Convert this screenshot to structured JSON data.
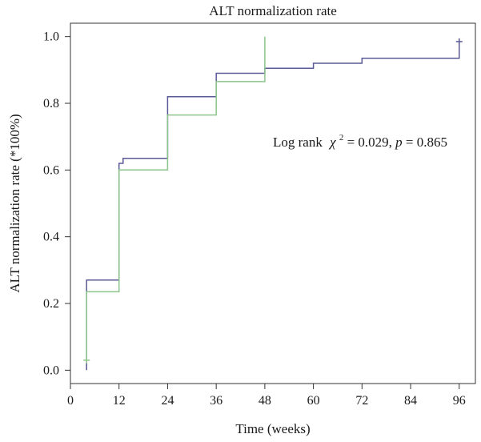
{
  "chart_data": {
    "type": "line",
    "subtype": "kaplan-meier-step",
    "title": "ALT normalization rate",
    "xlabel": "Time (weeks)",
    "ylabel": "ALT normalization rate (*100%)",
    "xlim": [
      0,
      100
    ],
    "ylim": [
      -0.04,
      1.04
    ],
    "x_ticks": [
      0,
      12,
      24,
      36,
      48,
      60,
      72,
      84,
      96
    ],
    "y_ticks": [
      0.0,
      0.2,
      0.4,
      0.6,
      0.8,
      1.0
    ],
    "y_tick_labels": [
      "0.0",
      "0.2",
      "0.4",
      "0.6",
      "0.8",
      "1.0"
    ],
    "grid": false,
    "legend": "none",
    "series": [
      {
        "color": "#5a5a96",
        "steps": [
          {
            "x": 4,
            "y": 0.0
          },
          {
            "x": 4,
            "y": 0.27
          },
          {
            "x": 12,
            "y": 0.27
          },
          {
            "x": 12,
            "y": 0.62
          },
          {
            "x": 13,
            "y": 0.62
          },
          {
            "x": 13,
            "y": 0.635
          },
          {
            "x": 24,
            "y": 0.635
          },
          {
            "x": 24,
            "y": 0.82
          },
          {
            "x": 36,
            "y": 0.82
          },
          {
            "x": 36,
            "y": 0.89
          },
          {
            "x": 48,
            "y": 0.89
          },
          {
            "x": 48,
            "y": 0.905
          },
          {
            "x": 60,
            "y": 0.905
          },
          {
            "x": 60,
            "y": 0.92
          },
          {
            "x": 72,
            "y": 0.92
          },
          {
            "x": 72,
            "y": 0.935
          },
          {
            "x": 96,
            "y": 0.935
          },
          {
            "x": 96,
            "y": 0.985
          }
        ],
        "censor_marks": [
          {
            "x": 96,
            "y": 0.985
          }
        ]
      },
      {
        "color": "#8cc48c",
        "steps": [
          {
            "x": 4,
            "y": 0.03
          },
          {
            "x": 4,
            "y": 0.235
          },
          {
            "x": 12,
            "y": 0.235
          },
          {
            "x": 12,
            "y": 0.6
          },
          {
            "x": 24,
            "y": 0.6
          },
          {
            "x": 24,
            "y": 0.765
          },
          {
            "x": 36,
            "y": 0.765
          },
          {
            "x": 36,
            "y": 0.865
          },
          {
            "x": 48,
            "y": 0.865
          },
          {
            "x": 48,
            "y": 1.0
          }
        ],
        "censor_marks": [
          {
            "x": 4,
            "y": 0.03
          }
        ]
      }
    ],
    "annotation": {
      "prefix": "Log rank",
      "chi_symbol": "χ",
      "superscript": "2",
      "chi_value": " = 0.029, ",
      "p_symbol": "p",
      "p_value": " = 0.865",
      "x": 50,
      "y": 0.67
    }
  }
}
